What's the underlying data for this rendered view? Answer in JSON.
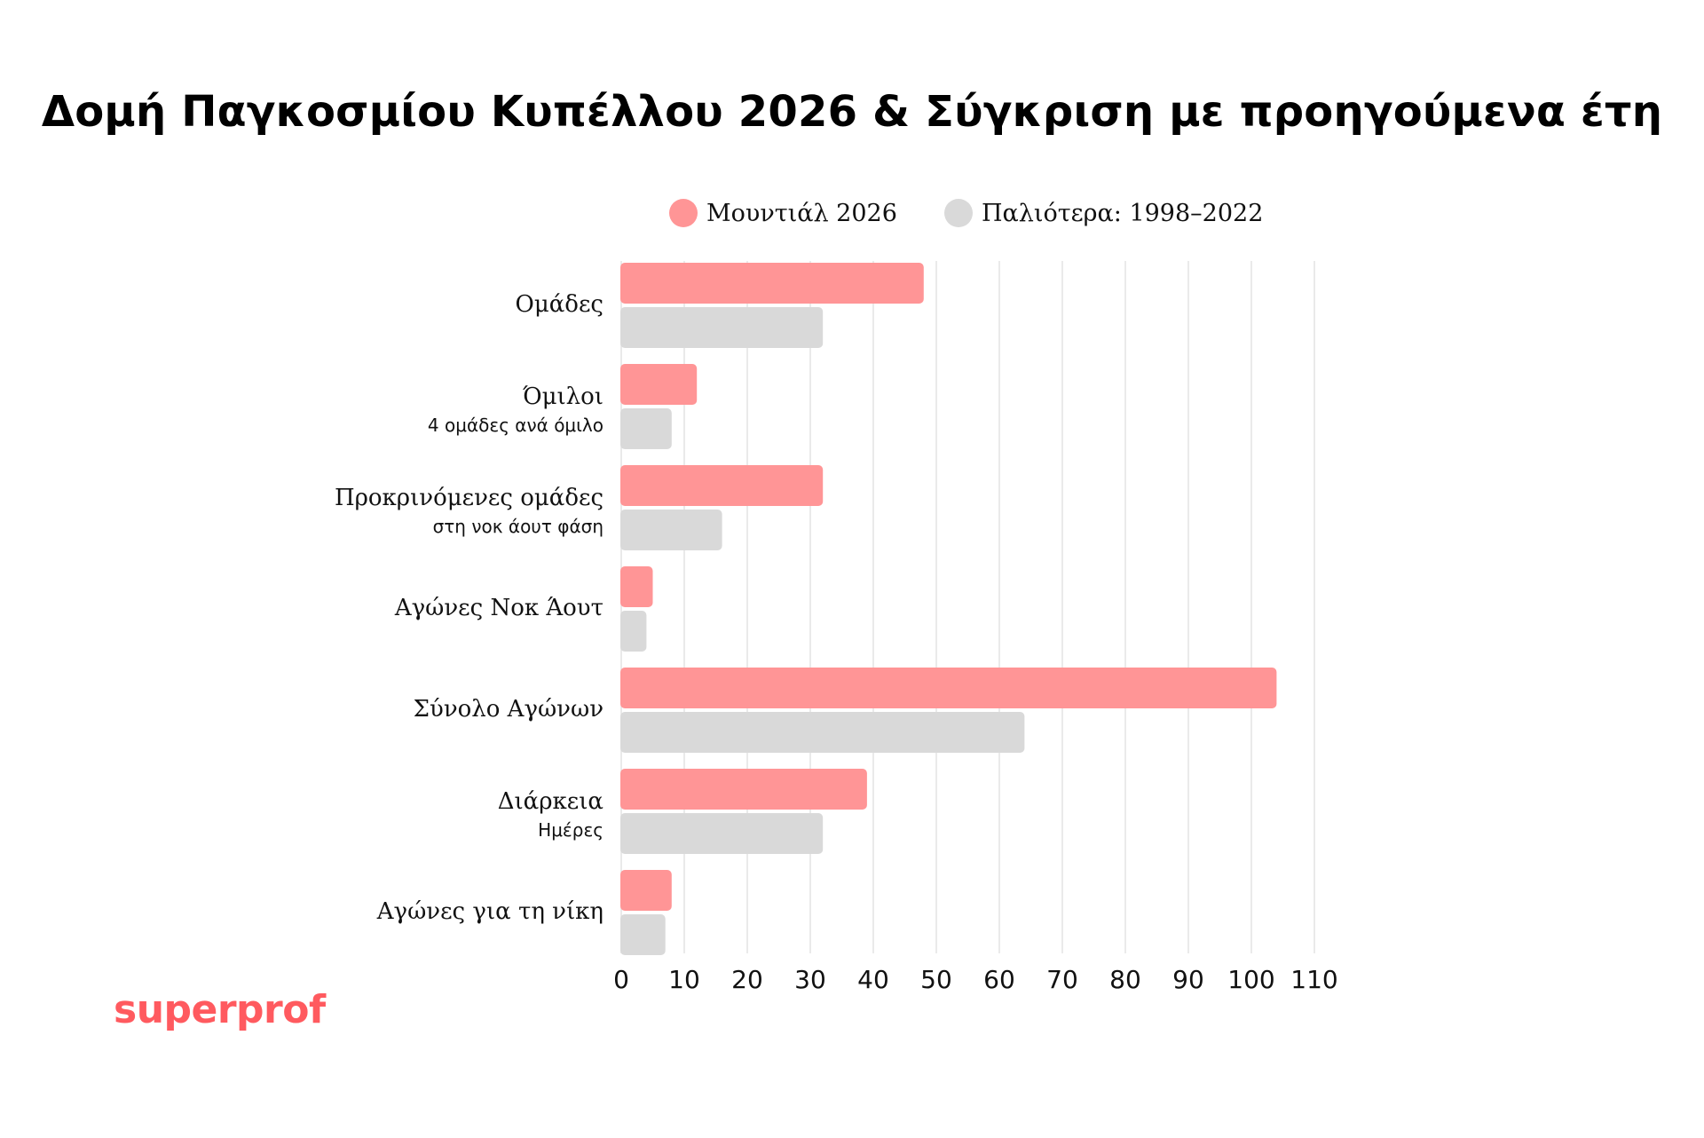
{
  "colors": {
    "series_2026": "#ff9596",
    "series_old": "#d9d9d9",
    "gridline": "#e3e3e3",
    "brand": "#ff5a5f"
  },
  "brand": {
    "text": "superprof"
  },
  "chart_data": {
    "type": "bar",
    "orientation": "horizontal",
    "title": "Δομή Παγκοσμίου Κυπέλλου 2026 & Σύγκριση με προηγούμενα έτη",
    "legend_position": "top",
    "grid": true,
    "xlim": [
      0,
      110
    ],
    "xticks": [
      0,
      10,
      20,
      30,
      40,
      50,
      60,
      70,
      80,
      90,
      100,
      110
    ],
    "categories": [
      {
        "label": "Ομάδες",
        "sublabel": ""
      },
      {
        "label": "Όμιλοι",
        "sublabel": "4 ομάδες ανά όμιλο"
      },
      {
        "label": "Προκρινόμενες ομάδες",
        "sublabel": "στη νοκ άουτ φάση"
      },
      {
        "label": "Αγώνες Νοκ Άουτ",
        "sublabel": ""
      },
      {
        "label": "Σύνολο Αγώνων",
        "sublabel": ""
      },
      {
        "label": "Διάρκεια",
        "sublabel": "Ημέρες"
      },
      {
        "label": "Αγώνες για τη νίκη",
        "sublabel": ""
      }
    ],
    "series": [
      {
        "name": "Μουντιάλ 2026",
        "values": [
          48,
          12,
          32,
          5,
          104,
          39,
          8
        ]
      },
      {
        "name": "Παλιότερα: 1998–2022",
        "values": [
          32,
          8,
          16,
          4,
          64,
          32,
          7
        ]
      }
    ]
  }
}
